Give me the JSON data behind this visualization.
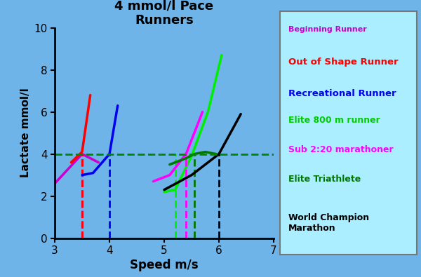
{
  "title": "4 mmol/l Pace\nRunners",
  "xlabel": "Speed m/s",
  "ylabel": "Lactate mmol/l",
  "background_color": "#6EB4E8",
  "plot_bg_color": "#6EB4E8",
  "legend_bg_color": "#AAEEFF",
  "xlim": [
    3,
    7
  ],
  "ylim": [
    0,
    10
  ],
  "xticks": [
    3,
    4,
    5,
    6,
    7
  ],
  "yticks": [
    0,
    2,
    4,
    6,
    8,
    10
  ],
  "hline_y": 4,
  "hline_color": "#008800",
  "series": [
    {
      "name": "Beginning Runner",
      "color": "#CC00CC",
      "x": [
        3.0,
        3.5,
        3.8
      ],
      "y": [
        2.6,
        4.0,
        3.6
      ],
      "vline_x": 3.5,
      "vline_color": "#CC00CC"
    },
    {
      "name": "Out of Shape Runner",
      "color": "#FF0000",
      "x": [
        3.3,
        3.5,
        3.65
      ],
      "y": [
        3.6,
        4.1,
        6.8
      ],
      "vline_x": 3.5,
      "vline_color": "#FF0000"
    },
    {
      "name": "Recreational Runner",
      "color": "#0000EE",
      "x": [
        3.5,
        3.7,
        4.0,
        4.15
      ],
      "y": [
        3.0,
        3.1,
        4.0,
        6.3
      ],
      "vline_x": 4.0,
      "vline_color": "#0000EE"
    },
    {
      "name": "Elite 800 m runner",
      "color": "#00EE00",
      "x": [
        5.0,
        5.2,
        5.5,
        5.8,
        6.05
      ],
      "y": [
        2.2,
        2.3,
        3.9,
        6.0,
        8.7
      ],
      "vline_x": 5.2,
      "vline_color": "#00EE00"
    },
    {
      "name": "Sub 2:20 marathoner",
      "color": "#FF00FF",
      "x": [
        4.8,
        5.1,
        5.4,
        5.7
      ],
      "y": [
        2.7,
        3.0,
        4.0,
        6.0
      ],
      "vline_x": 5.4,
      "vline_color": "#FF00FF"
    },
    {
      "name": "Elite Triathlete",
      "color": "#007700",
      "x": [
        5.1,
        5.4,
        5.55,
        5.75,
        5.95
      ],
      "y": [
        3.5,
        3.8,
        4.0,
        4.1,
        4.0
      ],
      "vline_x": 5.55,
      "vline_color": "#007700"
    },
    {
      "name": "World Champion\nMarathon",
      "color": "#000000",
      "x": [
        5.0,
        5.5,
        6.0,
        6.4
      ],
      "y": [
        2.3,
        3.0,
        4.0,
        5.9
      ],
      "vline_x": 6.0,
      "vline_color": "#000000"
    }
  ],
  "legend_entries": [
    {
      "label": "Beginning Runner",
      "color": "#CC00CC",
      "size": 8.0
    },
    {
      "label": "Out of Shape Runner",
      "color": "#FF0000",
      "size": 9.5
    },
    {
      "label": "Recreational Runner",
      "color": "#0000EE",
      "size": 9.5
    },
    {
      "label": "Elite 800 m runner",
      "color": "#00CC00",
      "size": 9.0
    },
    {
      "label": "Sub 2:20 marathoner",
      "color": "#FF00FF",
      "size": 9.0
    },
    {
      "label": "Elite Triathlete",
      "color": "#007700",
      "size": 9.0
    },
    {
      "label": "World Champion\nMarathon",
      "color": "#000000",
      "size": 9.0
    }
  ]
}
